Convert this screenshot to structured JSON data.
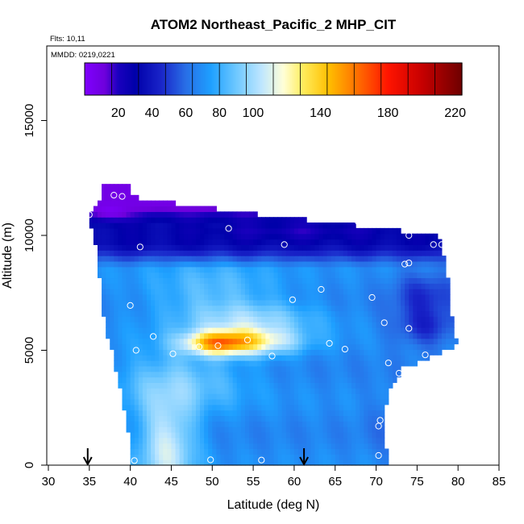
{
  "chart_data": {
    "type": "heatmap",
    "title": "ATOM2 Northeast_Pacific_2 MHP_CIT",
    "flights_label": "Flts: 10,11",
    "dates_label": "MMDD: 0219,0221",
    "xlabel": "Latitude (deg N)",
    "ylabel": "Altitude (m)",
    "xlim": [
      30,
      85
    ],
    "ylim": [
      0,
      18000
    ],
    "xticks": [
      "30",
      "35",
      "40",
      "45",
      "50",
      "55",
      "60",
      "65",
      "70",
      "75",
      "80",
      "85"
    ],
    "yticks": [
      "0",
      "5000",
      "10000",
      "15000"
    ],
    "colorbar": {
      "range": [
        0,
        224
      ],
      "ticks": [
        "20",
        "40",
        "60",
        "80",
        "100",
        "140",
        "180",
        "220"
      ],
      "tick_values": [
        20,
        40,
        60,
        80,
        100,
        140,
        180,
        220
      ]
    },
    "arrow_latitudes": [
      34.8,
      61.2
    ],
    "sample_points": [
      [
        35.5,
        11650
      ],
      [
        38,
        11750
      ],
      [
        39,
        11700
      ],
      [
        35,
        10900
      ],
      [
        52,
        10300
      ],
      [
        67.8,
        10600
      ],
      [
        58.8,
        9600
      ],
      [
        41.2,
        9500
      ],
      [
        74,
        10000
      ],
      [
        77,
        9600
      ],
      [
        78,
        9600
      ],
      [
        73.5,
        8750
      ],
      [
        74,
        8800
      ],
      [
        63.3,
        7650
      ],
      [
        69.5,
        7300
      ],
      [
        59.8,
        7200
      ],
      [
        40,
        6950
      ],
      [
        71,
        6200
      ],
      [
        74,
        5950
      ],
      [
        80,
        5850
      ],
      [
        42.8,
        5600
      ],
      [
        54.3,
        5450
      ],
      [
        64.3,
        5300
      ],
      [
        48.4,
        5150
      ],
      [
        50.7,
        5200
      ],
      [
        40.7,
        5000
      ],
      [
        66.2,
        5050
      ],
      [
        45.2,
        4850
      ],
      [
        57.3,
        4750
      ],
      [
        76,
        4800
      ],
      [
        71.5,
        4450
      ],
      [
        72.8,
        4000
      ],
      [
        70.5,
        1950
      ],
      [
        70.3,
        1700
      ],
      [
        70.3,
        420
      ],
      [
        72,
        550
      ],
      [
        40.5,
        200
      ],
      [
        49.8,
        230
      ],
      [
        56,
        220
      ]
    ]
  }
}
